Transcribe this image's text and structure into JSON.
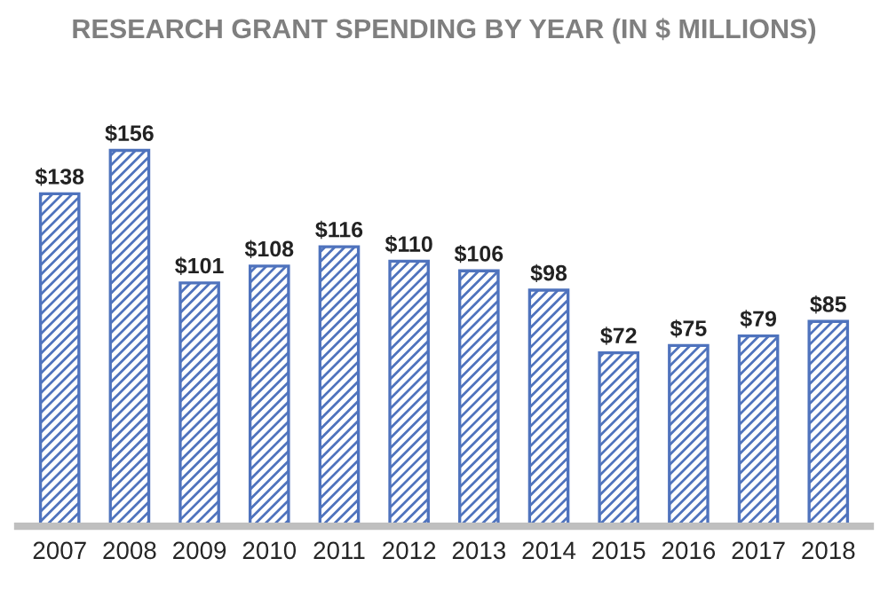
{
  "chart_data": {
    "type": "bar",
    "title": "RESEARCH GRANT SPENDING BY YEAR (IN $ MILLIONS)",
    "categories": [
      "2007",
      "2008",
      "2009",
      "2010",
      "2011",
      "2012",
      "2013",
      "2014",
      "2015",
      "2016",
      "2017",
      "2018"
    ],
    "values": [
      138,
      156,
      101,
      108,
      116,
      110,
      106,
      98,
      72,
      75,
      79,
      85
    ],
    "value_labels": [
      "$138",
      "$156",
      "$101",
      "$108",
      "$116",
      "$110",
      "$106",
      "$98",
      "$72",
      "$75",
      "$79",
      "$85"
    ],
    "color": "#4f73bd",
    "grid": false,
    "legend": false
  }
}
